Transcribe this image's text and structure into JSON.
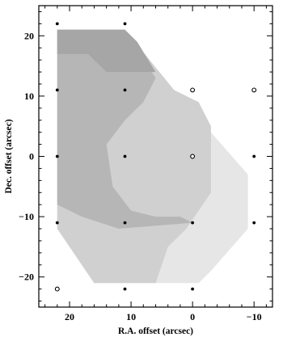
{
  "chart_data": {
    "type": "contour",
    "xlabel": "R.A. offset (arcsec)",
    "ylabel": "Dec. offset (arcsec)",
    "xlim": [
      25,
      -13
    ],
    "ylim": [
      -25,
      25
    ],
    "x_ticks": [
      20,
      10,
      0,
      -10
    ],
    "x_tick_labels": [
      "20",
      "10",
      "0",
      "−10"
    ],
    "y_ticks": [
      20,
      10,
      0,
      -10,
      -20
    ],
    "y_tick_labels": [
      "20",
      "10",
      "0",
      "−10",
      "−20"
    ],
    "x_minor_step": 2,
    "y_minor_step": 2,
    "grid": false,
    "fill_levels": [
      {
        "color": "#e6e6e6",
        "polygon": [
          [
            22,
            21
          ],
          [
            11,
            21
          ],
          [
            3,
            11
          ],
          [
            -3,
            4
          ],
          [
            -9,
            -3
          ],
          [
            -9,
            -12
          ],
          [
            -3,
            -19
          ],
          [
            -1,
            -21
          ],
          [
            16,
            -21
          ],
          [
            22,
            -12
          ]
        ]
      },
      {
        "color": "#d0d0d0",
        "polygon": [
          [
            22,
            21
          ],
          [
            11,
            21
          ],
          [
            3,
            11
          ],
          [
            -1,
            9
          ],
          [
            -3,
            5
          ],
          [
            -3,
            0
          ],
          [
            -3,
            -6
          ],
          [
            1,
            -12
          ],
          [
            4,
            -15
          ],
          [
            6,
            -21
          ],
          [
            16,
            -21
          ],
          [
            22,
            -12
          ]
        ]
      },
      {
        "color": "#b6b6b6",
        "polygon": [
          [
            22,
            21
          ],
          [
            11,
            21
          ],
          [
            6,
            13
          ],
          [
            8,
            9
          ],
          [
            11,
            6
          ],
          [
            14,
            2
          ],
          [
            13,
            -5
          ],
          [
            10,
            -9
          ],
          [
            6,
            -10
          ],
          [
            2,
            -10
          ],
          [
            0,
            -11
          ],
          [
            12,
            -12
          ],
          [
            18,
            -10
          ],
          [
            22,
            -8
          ]
        ]
      },
      {
        "color": "#a6a6a6",
        "polygon": [
          [
            22,
            21
          ],
          [
            11,
            21
          ],
          [
            9,
            19
          ],
          [
            6,
            14
          ],
          [
            14,
            14
          ],
          [
            17,
            17
          ],
          [
            22,
            17
          ]
        ]
      }
    ],
    "observed_points": [
      {
        "x": 22,
        "y": 22,
        "marker": "dot"
      },
      {
        "x": 11,
        "y": 22,
        "marker": "dot"
      },
      {
        "x": 22,
        "y": 11,
        "marker": "dot"
      },
      {
        "x": 11,
        "y": 11,
        "marker": "dot"
      },
      {
        "x": 0,
        "y": 11,
        "marker": "open"
      },
      {
        "x": -10,
        "y": 11,
        "marker": "open"
      },
      {
        "x": 22,
        "y": 0,
        "marker": "dot"
      },
      {
        "x": 11,
        "y": 0,
        "marker": "dot"
      },
      {
        "x": 0,
        "y": 0,
        "marker": "open"
      },
      {
        "x": -10,
        "y": 0,
        "marker": "dot"
      },
      {
        "x": 22,
        "y": -11,
        "marker": "dot"
      },
      {
        "x": 11,
        "y": -11,
        "marker": "dot"
      },
      {
        "x": 0,
        "y": -11,
        "marker": "dot"
      },
      {
        "x": -10,
        "y": -11,
        "marker": "dot"
      },
      {
        "x": 22,
        "y": -22,
        "marker": "open"
      },
      {
        "x": 11,
        "y": -22,
        "marker": "dot"
      },
      {
        "x": 0,
        "y": -22,
        "marker": "dot"
      }
    ]
  }
}
